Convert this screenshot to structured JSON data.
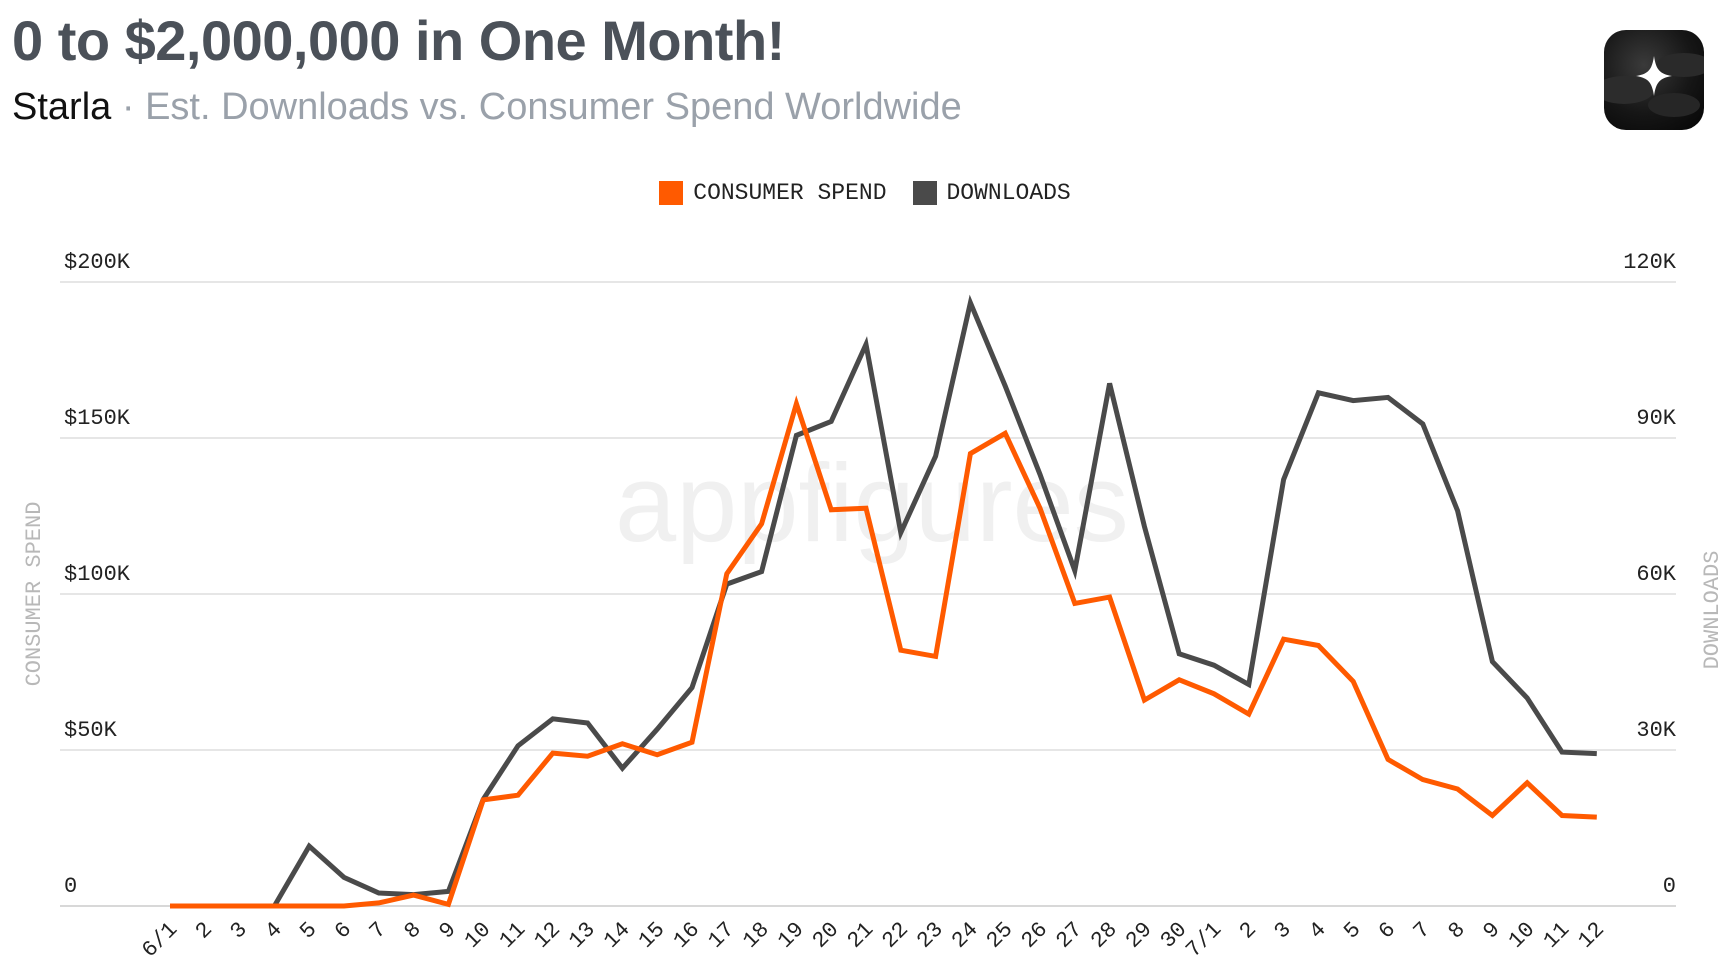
{
  "header": {
    "title": "0 to $2,000,000 in One Month!",
    "app_name": "Starla",
    "separator": "·",
    "description": "Est. Downloads vs. Consumer Spend Worldwide"
  },
  "watermark": "appfigures",
  "colors": {
    "consumer_spend": "#ff5a00",
    "downloads": "#4a4a4a",
    "grid": "#dddddd",
    "axis_label": "#b8b8b8"
  },
  "chart_data": {
    "type": "line",
    "x": [
      "6/1",
      "2",
      "3",
      "4",
      "5",
      "6",
      "7",
      "8",
      "9",
      "10",
      "11",
      "12",
      "13",
      "14",
      "15",
      "16",
      "17",
      "18",
      "19",
      "20",
      "21",
      "22",
      "23",
      "24",
      "25",
      "26",
      "27",
      "28",
      "29",
      "30",
      "7/1",
      "2",
      "3",
      "4",
      "5",
      "6",
      "7",
      "8",
      "9",
      "10",
      "11",
      "12"
    ],
    "series": [
      {
        "name": "CONSUMER SPEND",
        "axis": "left",
        "values": [
          0,
          0,
          0,
          0,
          0,
          0,
          1000,
          3500,
          500,
          34000,
          35500,
          49000,
          48000,
          52000,
          48500,
          52500,
          106500,
          122500,
          161000,
          127000,
          127500,
          82000,
          80000,
          145000,
          151500,
          127500,
          97000,
          99000,
          66000,
          72500,
          68000,
          61500,
          85500,
          83500,
          72000,
          47000,
          40500,
          37500,
          29000,
          39500,
          29000,
          28500
        ]
      },
      {
        "name": "DOWNLOADS",
        "axis": "right",
        "values": [
          0,
          0,
          0,
          0,
          11500,
          5500,
          2500,
          2200,
          2800,
          20500,
          30800,
          36000,
          35200,
          26500,
          34000,
          42000,
          61900,
          64300,
          90500,
          93200,
          108000,
          71800,
          86500,
          116000,
          100000,
          83000,
          64500,
          100500,
          73000,
          48500,
          46300,
          42600,
          82000,
          98700,
          97200,
          97800,
          92700,
          76000,
          47000,
          40000,
          29600,
          29300
        ]
      }
    ],
    "left_axis": {
      "label": "CONSUMER SPEND",
      "ticks": [
        "0",
        "$50K",
        "$100K",
        "$150K",
        "$200K"
      ],
      "ylim": [
        0,
        200000
      ]
    },
    "right_axis": {
      "label": "DOWNLOADS",
      "ticks": [
        "0",
        "30K",
        "60K",
        "90K",
        "120K"
      ],
      "ylim": [
        0,
        120000
      ]
    },
    "grid": true,
    "legend": "top-center"
  }
}
